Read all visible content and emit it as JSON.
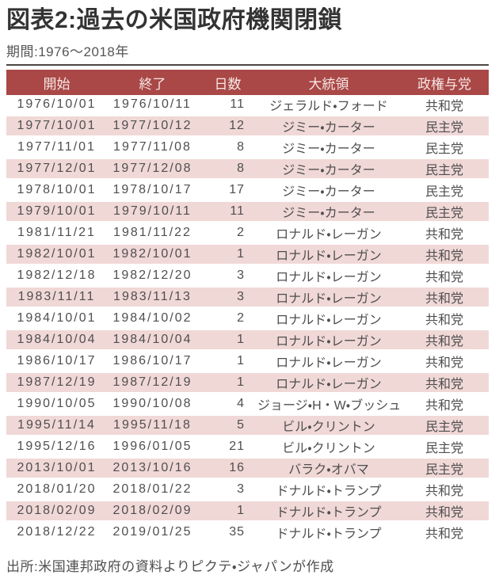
{
  "colors": {
    "header_bg": "#A94846",
    "header_text": "#F5E6E4",
    "row_alt_bg": "#F0D8D6",
    "body_text": "#4F4F4F",
    "title_text": "#333333",
    "subtitle_text": "#555555",
    "rule": "#4A4644"
  },
  "chart_data": {
    "type": "table",
    "title": "図表2:過去の米国政府機関閉鎖",
    "subtitle": "期間:1976〜2018年",
    "source": "出所:米国連邦政府の資料よりピクテ・ジャパンが作成",
    "columns": [
      "開始",
      "終了",
      "日数",
      "大統領",
      "政権与党"
    ],
    "rows": [
      [
        "1976/10/01",
        "1976/10/11",
        11,
        "ジェラルド・フォード",
        "共和党"
      ],
      [
        "1977/10/01",
        "1977/10/12",
        12,
        "ジミー・カーター",
        "民主党"
      ],
      [
        "1977/11/01",
        "1977/11/08",
        8,
        "ジミー・カーター",
        "民主党"
      ],
      [
        "1977/12/01",
        "1977/12/08",
        8,
        "ジミー・カーター",
        "民主党"
      ],
      [
        "1978/10/01",
        "1978/10/17",
        17,
        "ジミー・カーター",
        "民主党"
      ],
      [
        "1979/10/01",
        "1979/10/11",
        11,
        "ジミー・カーター",
        "民主党"
      ],
      [
        "1981/11/21",
        "1981/11/22",
        2,
        "ロナルド・レーガン",
        "共和党"
      ],
      [
        "1982/10/01",
        "1982/10/01",
        1,
        "ロナルド・レーガン",
        "共和党"
      ],
      [
        "1982/12/18",
        "1982/12/20",
        3,
        "ロナルド・レーガン",
        "共和党"
      ],
      [
        "1983/11/11",
        "1983/11/13",
        3,
        "ロナルド・レーガン",
        "共和党"
      ],
      [
        "1984/10/01",
        "1984/10/02",
        2,
        "ロナルド・レーガン",
        "共和党"
      ],
      [
        "1984/10/04",
        "1984/10/04",
        1,
        "ロナルド・レーガン",
        "共和党"
      ],
      [
        "1986/10/17",
        "1986/10/17",
        1,
        "ロナルド・レーガン",
        "共和党"
      ],
      [
        "1987/12/19",
        "1987/12/19",
        1,
        "ロナルド・レーガン",
        "共和党"
      ],
      [
        "1990/10/05",
        "1990/10/08",
        4,
        "ジョージ・H・W・ブッシュ",
        "共和党"
      ],
      [
        "1995/11/14",
        "1995/11/18",
        5,
        "ビル・クリントン",
        "民主党"
      ],
      [
        "1995/12/16",
        "1996/01/05",
        21,
        "ビル・クリントン",
        "民主党"
      ],
      [
        "2013/10/01",
        "2013/10/16",
        16,
        "バラク・オバマ",
        "民主党"
      ],
      [
        "2018/01/20",
        "2018/01/22",
        3,
        "ドナルド・トランプ",
        "共和党"
      ],
      [
        "2018/02/09",
        "2018/02/09",
        1,
        "ドナルド・トランプ",
        "共和党"
      ],
      [
        "2018/12/22",
        "2019/01/25",
        35,
        "ドナルド・トランプ",
        "共和党"
      ]
    ]
  }
}
